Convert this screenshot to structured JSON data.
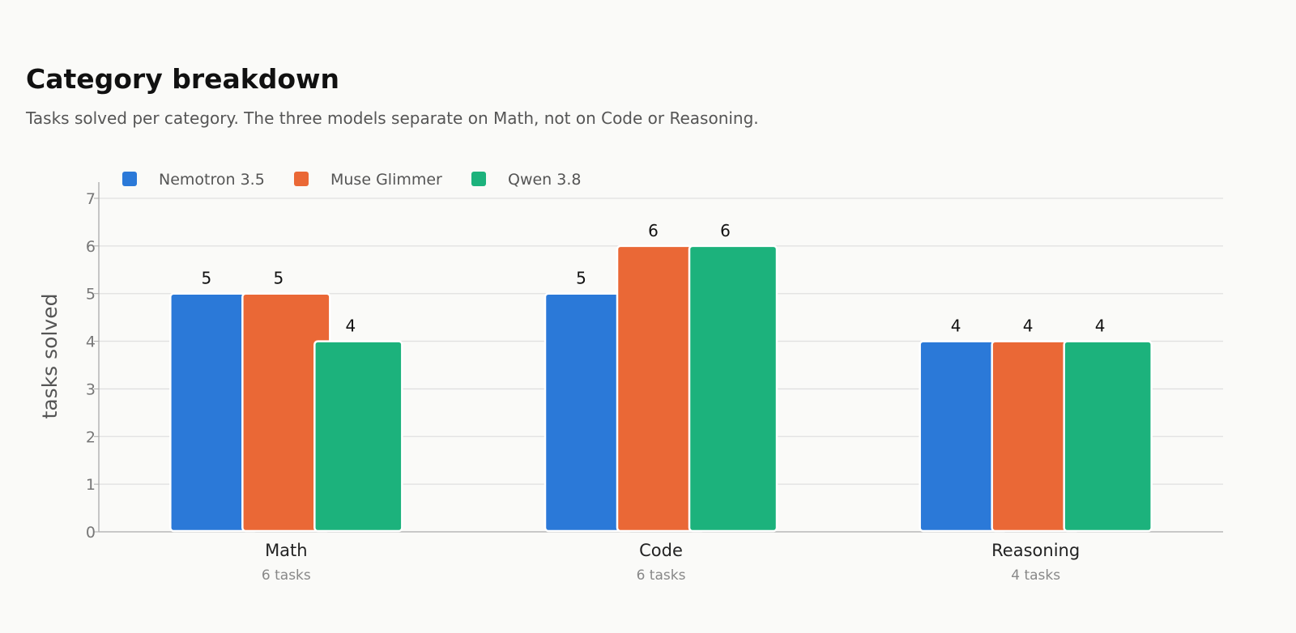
{
  "header": {
    "title": "Category breakdown",
    "subtitle": "Tasks solved per category. The three models separate on Math, not on Code or Reasoning."
  },
  "chart_data": {
    "type": "bar",
    "categories": [
      "Math",
      "Code",
      "Reasoning"
    ],
    "category_sublabels": [
      "6 tasks",
      "6 tasks",
      "4 tasks"
    ],
    "series": [
      {
        "name": "Nemotron 3.5",
        "color": "#2b79d8",
        "values": [
          5,
          5,
          4
        ]
      },
      {
        "name": "Muse Glimmer",
        "color": "#ea6836",
        "values": [
          5,
          6,
          4
        ]
      },
      {
        "name": "Qwen 3.8",
        "color": "#1cb27c",
        "values": [
          4,
          6,
          4
        ]
      }
    ],
    "ylabel": "tasks solved",
    "xlabel": "",
    "ylim": [
      0,
      7
    ],
    "yticks": [
      "0",
      "1",
      "2",
      "3",
      "4",
      "5",
      "6",
      "7"
    ],
    "grid": true,
    "legend_position": "top-left",
    "data_labels": true
  }
}
